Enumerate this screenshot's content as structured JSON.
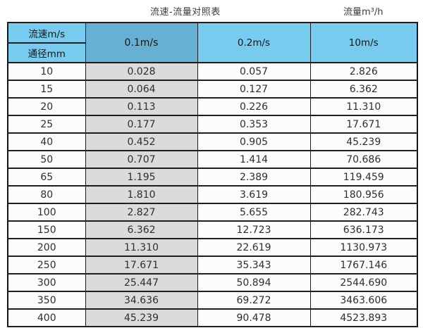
{
  "page": {
    "title_left": "流速-流量对照表",
    "title_right": "流量m³/h"
  },
  "table": {
    "corner": {
      "top": "流速m/s",
      "bottom": "通径mm"
    },
    "columns": [
      "0.1m/s",
      "0.2m/s",
      "10m/s"
    ],
    "rows": [
      {
        "diameter": "10",
        "values": [
          "0.028",
          "0.057",
          "2.826"
        ]
      },
      {
        "diameter": "15",
        "values": [
          "0.064",
          "0.127",
          "6.362"
        ]
      },
      {
        "diameter": "20",
        "values": [
          "0.113",
          "0.226",
          "11.310"
        ]
      },
      {
        "diameter": "25",
        "values": [
          "0.177",
          "0.353",
          "17.671"
        ]
      },
      {
        "diameter": "40",
        "values": [
          "0.452",
          "0.905",
          "45.239"
        ]
      },
      {
        "diameter": "50",
        "values": [
          "0.707",
          "1.414",
          "70.686"
        ]
      },
      {
        "diameter": "65",
        "values": [
          "1.195",
          "2.389",
          "119.459"
        ]
      },
      {
        "diameter": "80",
        "values": [
          "1.810",
          "3.619",
          "180.956"
        ]
      },
      {
        "diameter": "100",
        "values": [
          "2.827",
          "5.655",
          "282.743"
        ]
      },
      {
        "diameter": "150",
        "values": [
          "6.362",
          "12.723",
          "636.173"
        ]
      },
      {
        "diameter": "200",
        "values": [
          "11.310",
          "22.619",
          "1130.973"
        ]
      },
      {
        "diameter": "250",
        "values": [
          "17.671",
          "35.343",
          "1767.146"
        ]
      },
      {
        "diameter": "300",
        "values": [
          "25.447",
          "50.894",
          "2544.690"
        ]
      },
      {
        "diameter": "350",
        "values": [
          "34.636",
          "69.272",
          "3463.606"
        ]
      },
      {
        "diameter": "400",
        "values": [
          "45.239",
          "90.478",
          "4523.893"
        ]
      }
    ]
  },
  "colors": {
    "lightBlue": "#76cbef",
    "midBlue": "#68afd4",
    "greyCol": "#dbdbdb",
    "rowBg": "#fcfcfc",
    "border": "#1e1e1e",
    "text": "#2e2e2e"
  },
  "chart_data": {
    "type": "table",
    "title": "流速-流量对照表",
    "unit_label": "流量m³/h",
    "col_header": "流速m/s",
    "row_header": "通径mm",
    "categories": [
      10,
      15,
      20,
      25,
      40,
      50,
      65,
      80,
      100,
      150,
      200,
      250,
      300,
      350,
      400
    ],
    "series": [
      {
        "name": "0.1m/s",
        "values": [
          0.028,
          0.064,
          0.113,
          0.177,
          0.452,
          0.707,
          1.195,
          1.81,
          2.827,
          6.362,
          11.31,
          17.671,
          25.447,
          34.636,
          45.239
        ]
      },
      {
        "name": "0.2m/s",
        "values": [
          0.057,
          0.127,
          0.226,
          0.353,
          0.905,
          1.414,
          2.389,
          3.619,
          5.655,
          12.723,
          22.619,
          35.343,
          50.894,
          69.272,
          90.478
        ]
      },
      {
        "name": "10m/s",
        "values": [
          2.826,
          6.362,
          11.31,
          17.671,
          45.239,
          70.686,
          119.459,
          180.956,
          282.743,
          636.173,
          1130.973,
          1767.146,
          2544.69,
          3463.606,
          4523.893
        ]
      }
    ]
  }
}
